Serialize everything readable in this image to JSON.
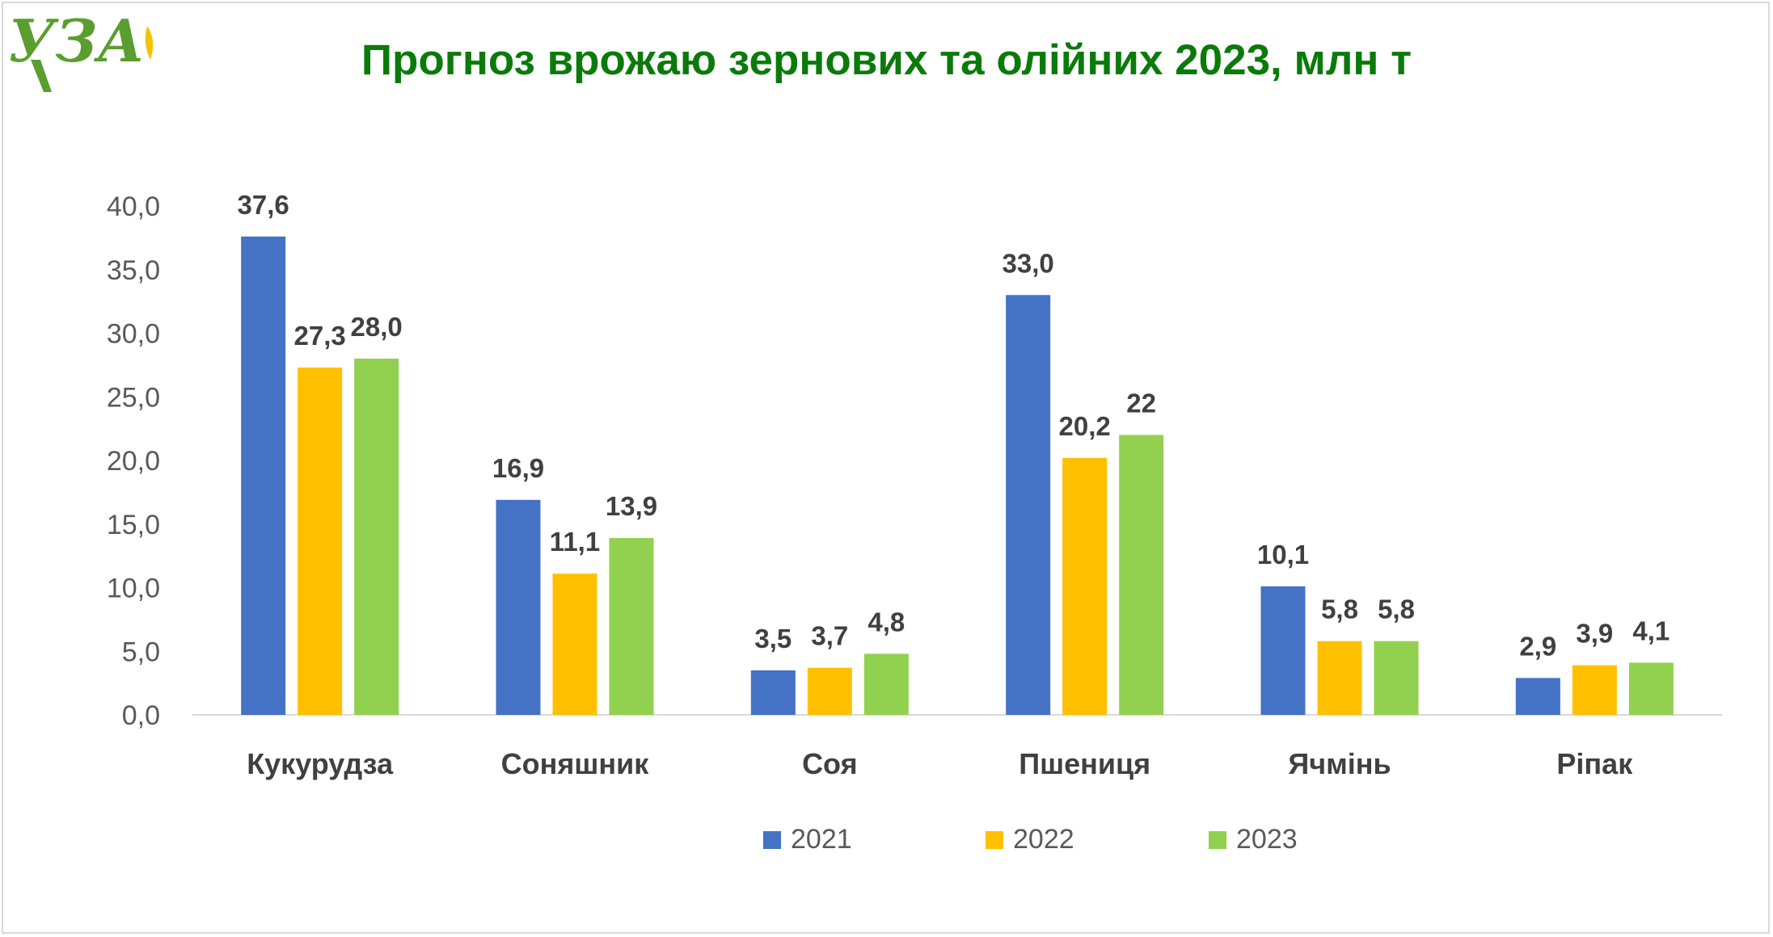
{
  "logo": {
    "text": "УЗА",
    "color": "#5a9e2f"
  },
  "title": {
    "text": "Прогноз врожаю зернових та олійних 2023, млн т",
    "color": "#0b7a0b"
  },
  "chart_data": {
    "type": "bar",
    "title": "Прогноз врожаю зернових та олійних 2023, млн т",
    "xlabel": "",
    "ylabel": "",
    "ylim": [
      0,
      40
    ],
    "y_ticks": [
      "0,0",
      "5,0",
      "10,0",
      "15,0",
      "20,0",
      "25,0",
      "30,0",
      "35,0",
      "40,0"
    ],
    "grid": false,
    "legend_position": "bottom",
    "categories": [
      "Кукурудза",
      "Соняшник",
      "Соя",
      "Пшениця",
      "Ячмінь",
      "Ріпак"
    ],
    "series": [
      {
        "name": "2021",
        "color": "#4472c4",
        "values": [
          37.6,
          16.9,
          3.5,
          33.0,
          10.1,
          2.9
        ],
        "labels": [
          "37,6",
          "16,9",
          "3,5",
          "33,0",
          "10,1",
          "2,9"
        ]
      },
      {
        "name": "2022",
        "color": "#ffc000",
        "values": [
          27.3,
          11.1,
          3.7,
          20.2,
          5.8,
          3.9
        ],
        "labels": [
          "27,3",
          "11,1",
          "3,7",
          "20,2",
          "5,8",
          "3,9"
        ]
      },
      {
        "name": "2023",
        "color": "#92d050",
        "values": [
          28.0,
          13.9,
          4.8,
          22,
          5.8,
          4.1
        ],
        "labels": [
          "28,0",
          "13,9",
          "4,8",
          "22",
          "5,8",
          "4,1"
        ]
      }
    ]
  }
}
